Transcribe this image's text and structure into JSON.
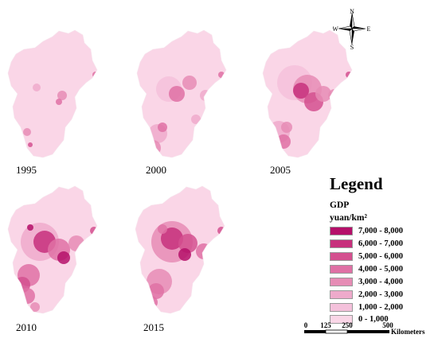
{
  "maps": [
    {
      "year": "1995"
    },
    {
      "year": "2000"
    },
    {
      "year": "2005"
    },
    {
      "year": "2010"
    },
    {
      "year": "2015"
    }
  ],
  "legend": {
    "title": "Legend",
    "variable": "GDP",
    "unit": "yuan/km²",
    "classes": [
      {
        "label": "7,000 - 8,000",
        "color": "#b5106a"
      },
      {
        "label": "6,000 - 7,000",
        "color": "#c7307c"
      },
      {
        "label": "5,000 - 6,000",
        "color": "#d4508f"
      },
      {
        "label": "4,000 - 5,000",
        "color": "#df71a5"
      },
      {
        "label": "3,000 - 4,000",
        "color": "#e68cb5"
      },
      {
        "label": "2,000 - 3,000",
        "color": "#eeaacb"
      },
      {
        "label": "1,000 - 2,000",
        "color": "#f4c1db"
      },
      {
        "label": "0 - 1,000",
        "color": "#fad6e7"
      }
    ]
  },
  "compass": {
    "n": "N",
    "s": "S",
    "e": "E",
    "w": "W"
  },
  "scale": {
    "ticks": [
      "0",
      "125",
      "250",
      "500"
    ],
    "unit": "Kilometers"
  }
}
